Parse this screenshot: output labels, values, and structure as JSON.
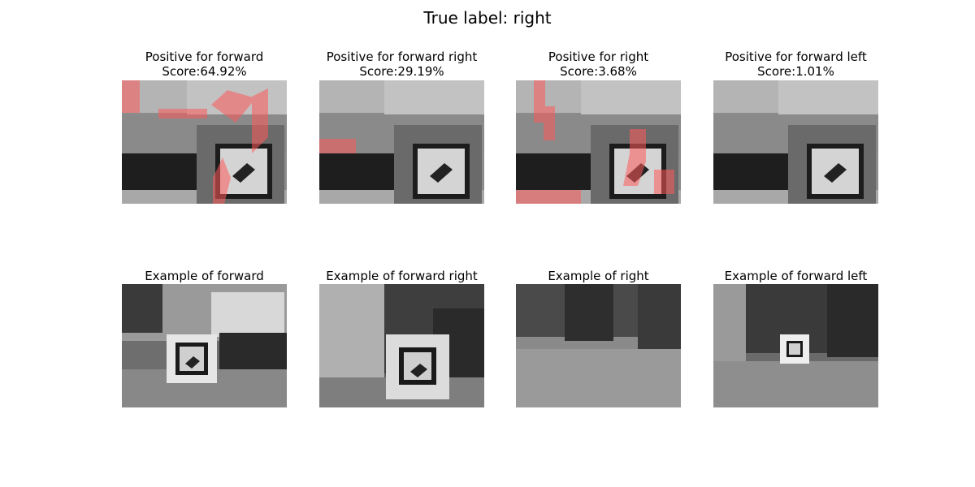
{
  "suptitle": "True label: right",
  "heatmap_row": [
    {
      "title": "Positive for forward",
      "score": "Score:64.92%"
    },
    {
      "title": "Positive for forward right",
      "score": "Score:29.19%"
    },
    {
      "title": "Positive for right",
      "score": "Score:3.68%"
    },
    {
      "title": "Positive for forward left",
      "score": "Score:1.01%"
    }
  ],
  "example_row": [
    {
      "title": "Example of forward"
    },
    {
      "title": "Example of forward right"
    },
    {
      "title": "Example of right"
    },
    {
      "title": "Example of forward left"
    }
  ],
  "colors": {
    "overlay": "#ff5a5a"
  }
}
